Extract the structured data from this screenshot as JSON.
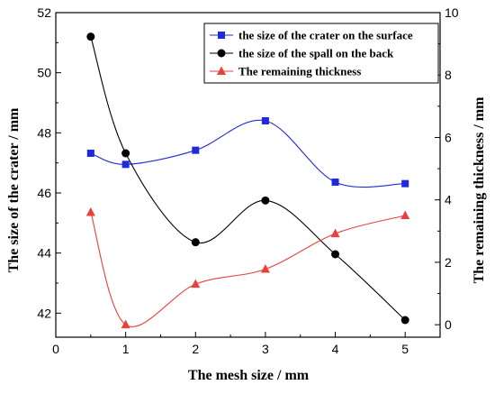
{
  "chart_data": {
    "type": "line",
    "title": "",
    "xlabel": "The mesh size / mm",
    "ylabel_left": "The size of the crater / mm",
    "ylabel_right": "The remaining thickness / mm",
    "xlim": [
      0,
      5.5
    ],
    "ylim_left": [
      41.2,
      52
    ],
    "ylim_right": [
      -0.4,
      10
    ],
    "x_ticks": [
      0,
      1,
      2,
      3,
      4,
      5
    ],
    "y_left_ticks": [
      42,
      44,
      46,
      48,
      50,
      52
    ],
    "y_right_ticks": [
      0,
      2,
      4,
      6,
      8,
      10
    ],
    "grid": false,
    "legend_position": "top-right",
    "series": [
      {
        "name": "the size of the crater on the surface",
        "axis": "left",
        "color": "#1f2bd9",
        "marker": "square",
        "x": [
          0.5,
          1,
          2,
          3,
          4,
          5
        ],
        "values": [
          47.32,
          46.95,
          47.42,
          48.4,
          46.36,
          46.31
        ]
      },
      {
        "name": "the size of the spall on the back",
        "axis": "left",
        "color": "#000000",
        "marker": "circle",
        "x": [
          0.5,
          1,
          2,
          3,
          4,
          5
        ],
        "values": [
          51.2,
          47.32,
          44.36,
          45.75,
          43.96,
          41.77
        ]
      },
      {
        "name": "The remaining thickness",
        "axis": "right",
        "color": "#e8413c",
        "marker": "triangle",
        "x": [
          0.5,
          1,
          2,
          3,
          4,
          5
        ],
        "values": [
          3.6,
          0.0,
          1.3,
          1.78,
          2.92,
          3.5
        ]
      }
    ]
  }
}
